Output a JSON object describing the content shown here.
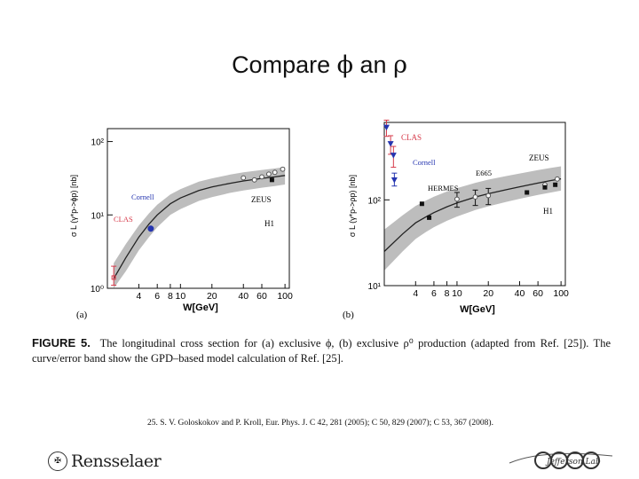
{
  "slide": {
    "title_text": "Compare ",
    "title_sym1": "ϕ",
    "title_mid": " an ",
    "title_sym2": "ρ"
  },
  "panels": {
    "a": {
      "label": "(a)",
      "xlabel": "W[GeV]",
      "ylabel": "σ L (γ*p->ϕp) [nb]",
      "ann_zeus": "ZEUS",
      "ann_h1": "H1",
      "ann_cornell": "Cornell",
      "ann_clas": "CLAS"
    },
    "b": {
      "label": "(b)",
      "xlabel": "W[GeV]",
      "ylabel": "σ L (γ*p->ρp) [nb]",
      "ann_zeus": "ZEUS",
      "ann_h1": "H1",
      "ann_cornell": "Cornell",
      "ann_clas": "CLAS",
      "ann_e665": "E665",
      "ann_hermes": "HERMES"
    }
  },
  "caption": {
    "prefix": "FIGURE 5.",
    "text": "The longitudinal cross section for (a) exclusive ϕ, (b) exclusive ρ⁰ production (adapted from Ref. [25]). The curve/error band show the GPD–based model calculation of Ref. [25]."
  },
  "reference": "25.   S. V. Goloskokov and P. Kroll, Eur. Phys. J. C 42, 281 (2005); C 50, 829 (2007); C 53, 367 (2008).",
  "footer": {
    "left_logo_text": "Rensselaer",
    "right_logo_text": "Jefferson Lab"
  },
  "colors": {
    "band": "#bdbdbd",
    "curve": "#222222",
    "clas": "#d63a4a",
    "cornell": "#2535b0",
    "axis": "#111111"
  },
  "chart_data": [
    {
      "type": "line",
      "panel": "a",
      "xscale": "log",
      "yscale": "log",
      "xlim": [
        2,
        110
      ],
      "ylim": [
        1,
        150
      ],
      "xticks": [
        4,
        6,
        8,
        10,
        20,
        40,
        60,
        100
      ],
      "xtick_labels": [
        "4",
        "6",
        "8",
        "10",
        "20",
        "40",
        "60",
        "100"
      ],
      "yticks": [
        1,
        10,
        100
      ],
      "ytick_labels": [
        "10⁰",
        "10¹",
        "10²"
      ],
      "xlabel": "W[GeV]",
      "ylabel": "σ L (γ*p->ϕp) [nb]",
      "model_curve": {
        "x": [
          2.3,
          3,
          4,
          5,
          6,
          8,
          10,
          15,
          20,
          30,
          40,
          60,
          80,
          100
        ],
        "y": [
          1.35,
          2.6,
          5.0,
          7.5,
          10.0,
          14.2,
          17.0,
          21.5,
          24.0,
          27.0,
          29.0,
          31.5,
          33.0,
          34.5
        ]
      },
      "band_low": [
        1.0,
        1.7,
        3.3,
        5.0,
        6.8,
        10.0,
        12.0,
        15.5,
        17.5,
        20.0,
        21.5,
        23.5,
        24.8,
        26.0
      ],
      "band_high": [
        2.2,
        4.0,
        7.2,
        10.5,
        13.8,
        19.0,
        22.5,
        28.5,
        31.5,
        35.5,
        38.0,
        41.0,
        43.0,
        45.0
      ],
      "series": [
        {
          "name": "ZEUS",
          "marker": "open-circle",
          "x": [
            40,
            51,
            60,
            70,
            80,
            95
          ],
          "y": [
            32,
            30,
            33,
            36,
            38,
            42
          ]
        },
        {
          "name": "H1",
          "marker": "filled-square",
          "x": [
            75
          ],
          "y": [
            30
          ]
        },
        {
          "name": "Cornell",
          "marker": "filled-circle",
          "x": [
            5.2
          ],
          "y": [
            6.5
          ]
        },
        {
          "name": "CLAS",
          "marker": "error-bar",
          "x": [
            2.3
          ],
          "y": [
            1.4
          ],
          "yerr_low": [
            0.3
          ],
          "yerr_high": [
            0.6
          ]
        }
      ]
    },
    {
      "type": "line",
      "panel": "b",
      "xscale": "log",
      "yscale": "log",
      "xlim": [
        2,
        110
      ],
      "ylim": [
        10,
        800
      ],
      "xticks": [
        4,
        6,
        8,
        10,
        20,
        40,
        60,
        100
      ],
      "xtick_labels": [
        "4",
        "6",
        "8",
        "10",
        "20",
        "40",
        "60",
        "100"
      ],
      "yticks": [
        10,
        100
      ],
      "ytick_labels": [
        "10¹",
        "10²"
      ],
      "xlabel": "W[GeV]",
      "ylabel": "σ L (γ*p->ρp) [nb]",
      "model_curve": {
        "x": [
          2,
          3,
          4,
          5,
          6,
          8,
          10,
          15,
          20,
          30,
          40,
          60,
          80,
          100
        ],
        "y": [
          25,
          40,
          54,
          63,
          71,
          83,
          92,
          108,
          118,
          132,
          142,
          157,
          168,
          176
        ]
      },
      "band_low": [
        15,
        25,
        35,
        42,
        48,
        57,
        64,
        76,
        84,
        95,
        103,
        114,
        122,
        128
      ],
      "band_high": [
        45,
        66,
        85,
        98,
        109,
        125,
        137,
        158,
        172,
        190,
        203,
        222,
        236,
        246
      ],
      "series": [
        {
          "name": "ZEUS",
          "marker": "open-circle",
          "x": [
            70,
            92
          ],
          "y": [
            150,
            175
          ]
        },
        {
          "name": "H1",
          "marker": "filled-square",
          "x": [
            47,
            70,
            88
          ],
          "y": [
            122,
            140,
            150
          ]
        },
        {
          "name": "E665",
          "marker": "open-circle",
          "x": [
            10,
            15,
            20
          ],
          "y": [
            102,
            108,
            112
          ],
          "yerr": [
            20,
            22,
            24
          ]
        },
        {
          "name": "HERMES",
          "marker": "filled-square",
          "x": [
            4.6,
            5.4
          ],
          "y": [
            90,
            62
          ]
        },
        {
          "name": "Cornell",
          "marker": "filled-triangle",
          "x": [
            2.5
          ],
          "y": [
            170
          ],
          "yerr_low": [
            25
          ],
          "yerr_high": [
            35
          ]
        },
        {
          "name": "CLAS",
          "marker": "filled-triangle",
          "x": [
            2.1,
            2.3,
            2.45
          ],
          "y": [
            700,
            450,
            330
          ],
          "yerr_low": [
            150,
            110,
            90
          ],
          "yerr_high": [
            150,
            110,
            90
          ]
        }
      ]
    }
  ]
}
